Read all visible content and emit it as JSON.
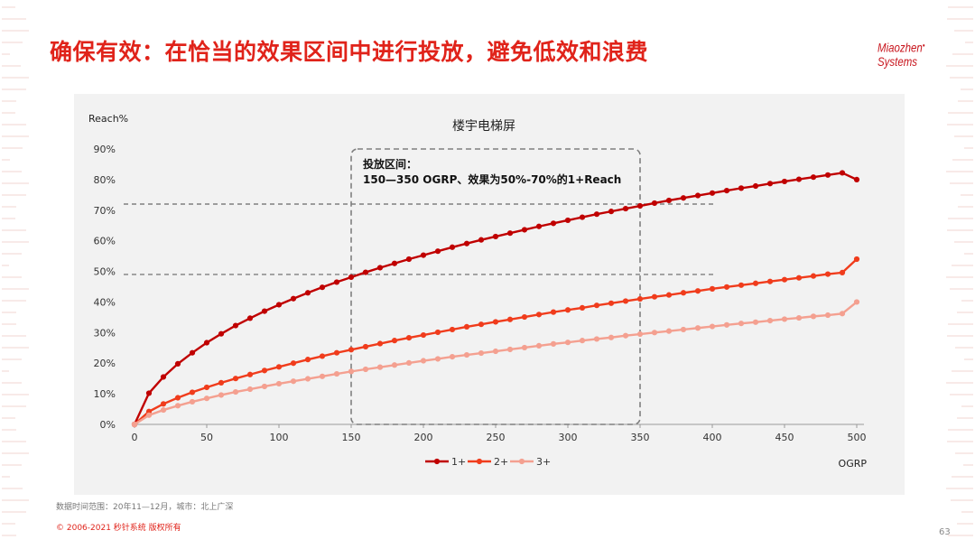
{
  "slide": {
    "title": "确保有效：在恰当的效果区间中进行投放，避免低效和浪费",
    "logo_line1": "Miaozhen",
    "logo_line2": "Systems",
    "footnote": "数据时间范围：20年11—12月，城市：北上广深",
    "copyright": "© 2006-2021 秒针系统 版权所有",
    "page_number": "63",
    "accent_color": "#e0231a"
  },
  "chart_data": {
    "type": "line",
    "title": "楼宇电梯屏",
    "ylabel": "Reach%",
    "xlabel": "OGRP",
    "xlim": [
      0,
      500
    ],
    "ylim": [
      0,
      90
    ],
    "x_ticks": [
      0,
      50,
      100,
      150,
      200,
      250,
      300,
      350,
      400,
      450,
      500
    ],
    "y_ticks": [
      "0%",
      "10%",
      "20%",
      "30%",
      "40%",
      "50%",
      "60%",
      "70%",
      "80%",
      "90%"
    ],
    "grid": false,
    "legend_position": "bottom",
    "x": [
      0,
      10,
      20,
      30,
      40,
      50,
      60,
      70,
      80,
      90,
      100,
      110,
      120,
      130,
      140,
      150,
      160,
      170,
      180,
      190,
      200,
      210,
      220,
      230,
      240,
      250,
      260,
      270,
      280,
      290,
      300,
      310,
      320,
      330,
      340,
      350,
      360,
      370,
      380,
      390,
      400,
      410,
      420,
      430,
      440,
      450,
      460,
      470,
      480,
      490,
      500
    ],
    "series": [
      {
        "name": "1+",
        "color": "#c00000",
        "values": [
          0,
          10.2,
          15.5,
          19.8,
          23.4,
          26.7,
          29.6,
          32.3,
          34.7,
          37.0,
          39.1,
          41.1,
          43.0,
          44.8,
          46.5,
          48.1,
          49.7,
          51.2,
          52.6,
          54.0,
          55.3,
          56.6,
          57.9,
          59.1,
          60.3,
          61.4,
          62.5,
          63.6,
          64.7,
          65.7,
          66.7,
          67.7,
          68.7,
          69.6,
          70.5,
          71.4,
          72.3,
          73.2,
          74.0,
          74.8,
          75.6,
          76.4,
          77.2,
          77.9,
          78.7,
          79.4,
          80.1,
          80.8,
          81.5,
          82.2,
          80.0
        ]
      },
      {
        "name": "2+",
        "color": "#f03c1c",
        "values": [
          0,
          4.2,
          6.7,
          8.7,
          10.5,
          12.1,
          13.6,
          15.0,
          16.3,
          17.6,
          18.8,
          20.0,
          21.2,
          22.3,
          23.4,
          24.4,
          25.4,
          26.4,
          27.4,
          28.3,
          29.2,
          30.1,
          31.0,
          31.9,
          32.7,
          33.5,
          34.3,
          35.1,
          35.9,
          36.7,
          37.4,
          38.1,
          38.9,
          39.6,
          40.3,
          41.0,
          41.7,
          42.3,
          43.0,
          43.6,
          44.3,
          44.9,
          45.5,
          46.1,
          46.7,
          47.3,
          47.9,
          48.5,
          49.1,
          49.6,
          54.0
        ]
      },
      {
        "name": "3+",
        "color": "#f4a090",
        "values": [
          0,
          3.0,
          4.7,
          6.1,
          7.4,
          8.5,
          9.6,
          10.6,
          11.5,
          12.4,
          13.3,
          14.1,
          14.9,
          15.7,
          16.5,
          17.3,
          18.0,
          18.7,
          19.4,
          20.1,
          20.8,
          21.4,
          22.1,
          22.7,
          23.3,
          23.9,
          24.5,
          25.1,
          25.7,
          26.3,
          26.8,
          27.4,
          27.9,
          28.4,
          29.0,
          29.5,
          30.0,
          30.5,
          31.0,
          31.5,
          32.0,
          32.5,
          33.0,
          33.4,
          33.9,
          34.4,
          34.8,
          35.3,
          35.7,
          36.2,
          40.0
        ]
      }
    ],
    "annotation": {
      "line1": "投放区间：",
      "line2": "150—350 OGRP、效果为50%-70%的1+Reach",
      "x_range": [
        150,
        350
      ],
      "y_range": [
        0,
        90
      ],
      "ref_lines_y": [
        72,
        49
      ]
    }
  }
}
